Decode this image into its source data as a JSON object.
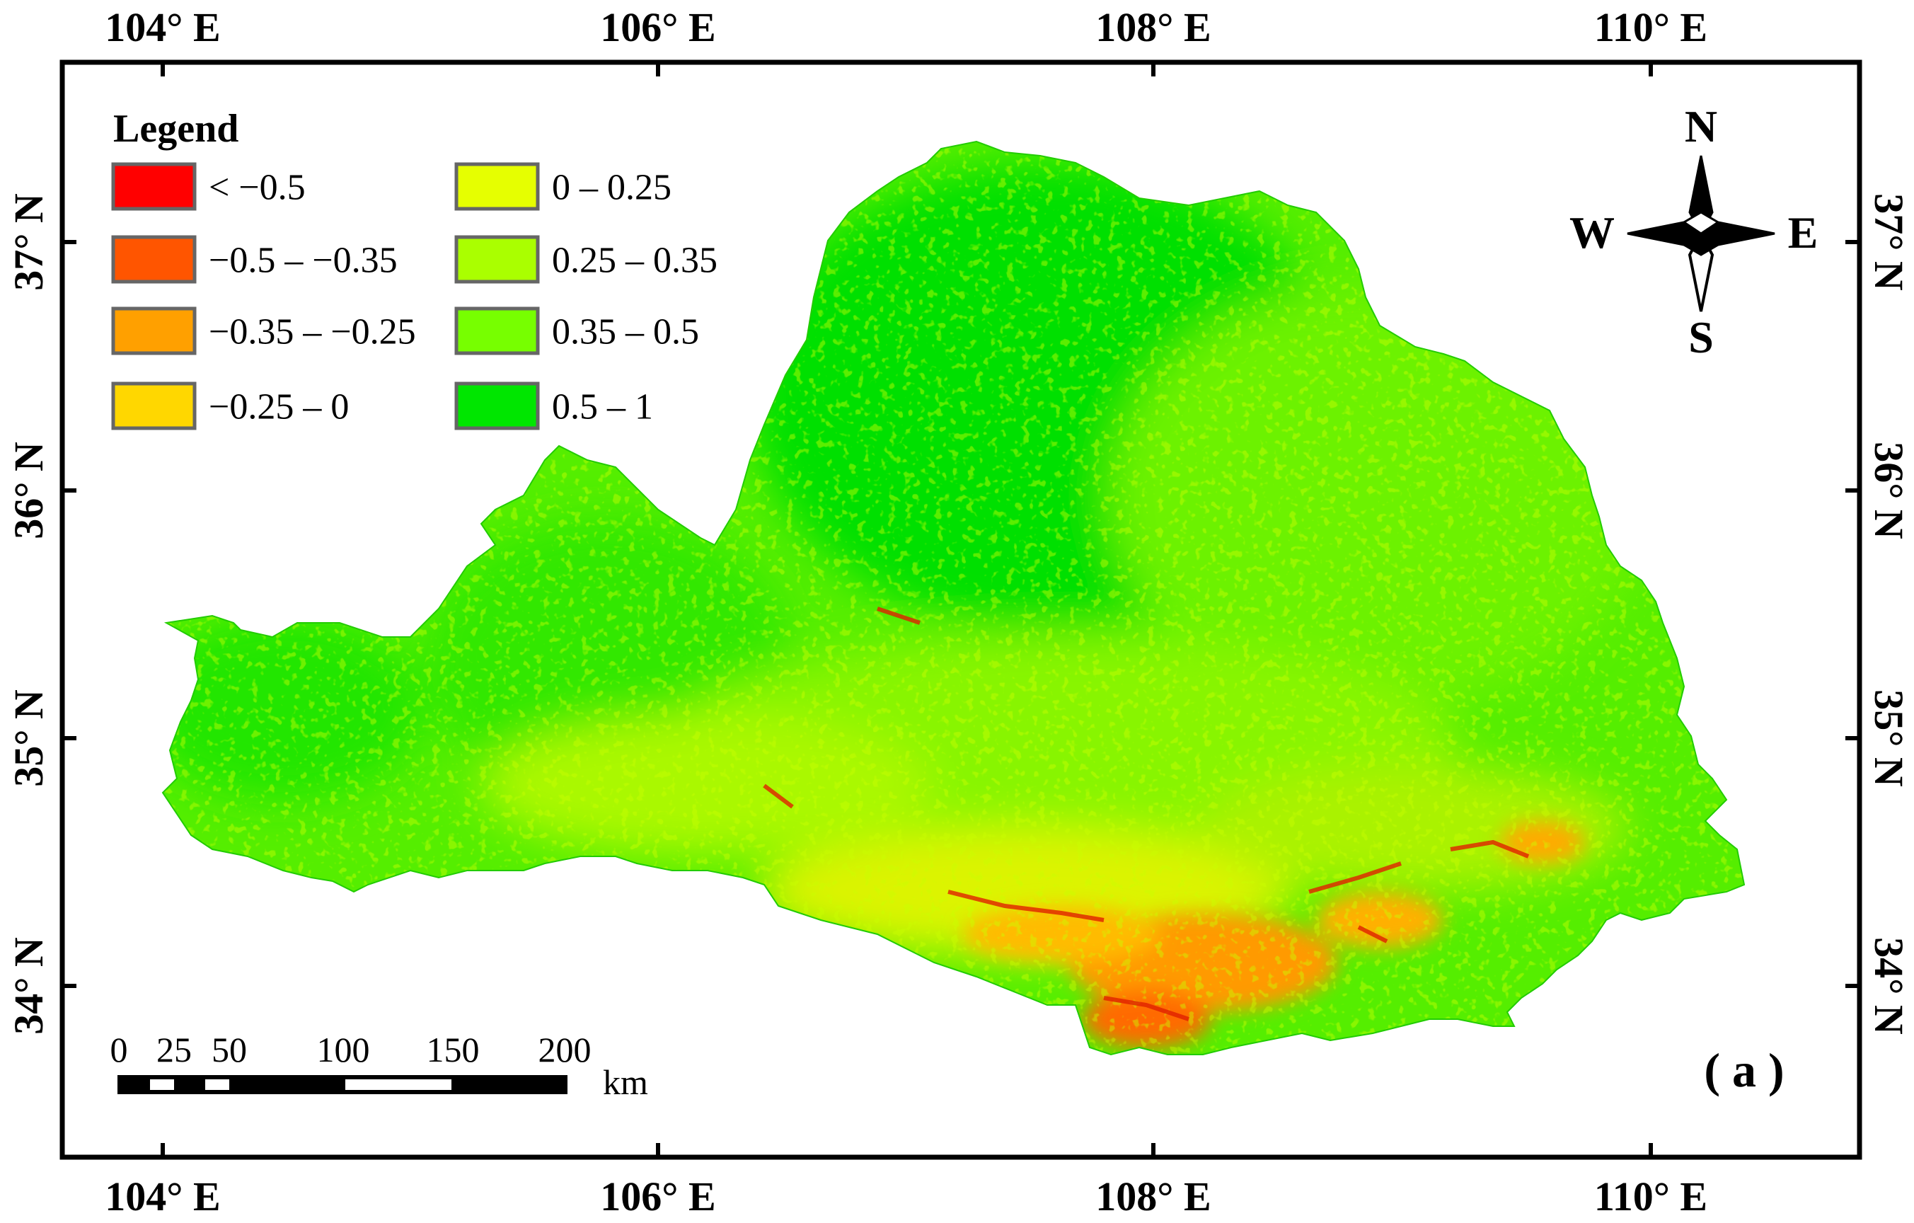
{
  "map": {
    "grid": {
      "top_labels": [
        "104° E",
        "106° E",
        "108° E",
        "110° E"
      ],
      "bottom_labels": [
        "104° E",
        "106° E",
        "108° E",
        "110° E"
      ],
      "left_labels": [
        "37° N",
        "36° N",
        "35° N",
        "34° N"
      ],
      "right_labels": [
        "37° N",
        "36° N",
        "35° N",
        "34° N"
      ]
    },
    "legend": {
      "title": "Legend",
      "items": [
        {
          "label": "< −0.5",
          "color": "#ff0000"
        },
        {
          "label": "−0.5 – −0.35",
          "color": "#ff5500"
        },
        {
          "label": "−0.35 – −0.25",
          "color": "#ffa000"
        },
        {
          "label": "−0.25 – 0",
          "color": "#ffd700"
        },
        {
          "label": "0 – 0.25",
          "color": "#e6ff00"
        },
        {
          "label": "0.25 – 0.35",
          "color": "#aaff00"
        },
        {
          "label": "0.35 – 0.5",
          "color": "#77ff00"
        },
        {
          "label": "0.5 – 1",
          "color": "#00e600"
        }
      ]
    },
    "compass": {
      "n": "N",
      "s": "S",
      "e": "E",
      "w": "W"
    },
    "scale_bar": {
      "labels": [
        "0",
        "25",
        "50",
        "100",
        "150",
        "200"
      ],
      "unit": "km"
    },
    "panel_label": "( a )"
  }
}
